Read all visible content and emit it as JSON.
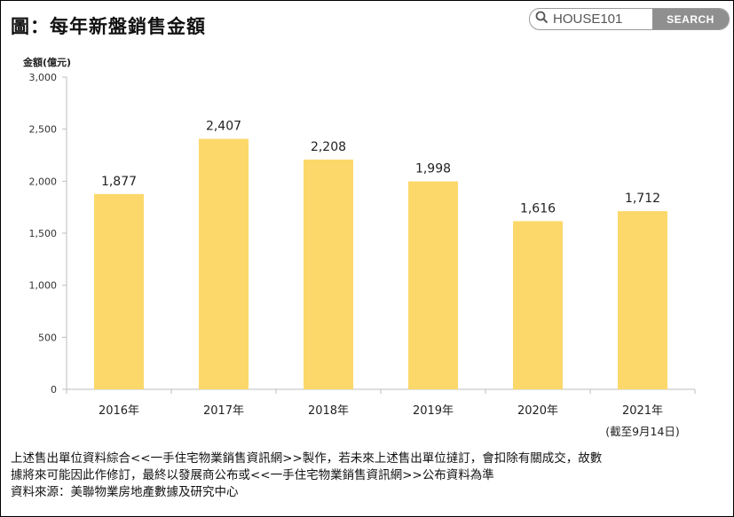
{
  "title": "圖：每年新盤銷售金額",
  "search": {
    "placeholder": "HOUSE101",
    "button_label": "SEARCH",
    "icon": "search-icon"
  },
  "chart_data": {
    "type": "bar",
    "ylabel": "金額(億元)",
    "xlabel": "",
    "categories": [
      "2016年",
      "2017年",
      "2018年",
      "2019年",
      "2020年",
      "2021年"
    ],
    "category_notes": [
      "",
      "",
      "",
      "",
      "",
      "(截至9月14日)"
    ],
    "values": [
      1877,
      2407,
      2208,
      1998,
      1616,
      1712
    ],
    "value_labels": [
      "1,877",
      "2,407",
      "2,208",
      "1,998",
      "1,616",
      "1,712"
    ],
    "ylim": [
      0,
      3000
    ],
    "yticks": [
      0,
      500,
      1000,
      1500,
      2000,
      2500,
      3000
    ],
    "ytick_labels": [
      "0",
      "500",
      "1,000",
      "1,500",
      "2,000",
      "2,500",
      "3,000"
    ],
    "bar_color": "#fcd86a",
    "grid": false,
    "legend": "none"
  },
  "footer": {
    "line1": "上述售出單位資料綜合<<一手住宅物業銷售資訊網>>製作，若未來上述售出單位撻訂，會扣除有關成交，故數",
    "line2": "據將來可能因此作修訂，最終以發展商公布或<<一手住宅物業銷售資訊網>>公布資料為準",
    "line3": "資料來源：美聯物業房地產數據及研究中心"
  }
}
